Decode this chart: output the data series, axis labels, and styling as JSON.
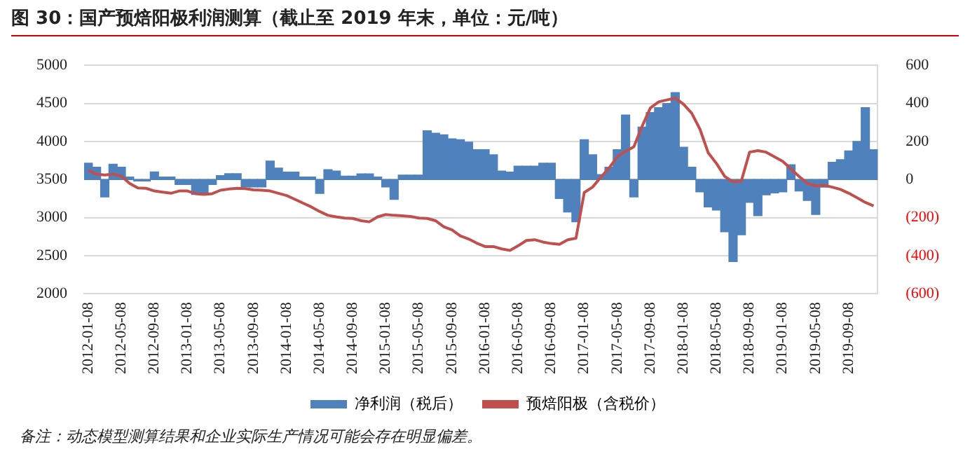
{
  "chart_data": {
    "type": "bar",
    "title": "图 30：国产预焙阳极利润测算（截止至 2019 年末，单位：元/吨）",
    "annotations": [
      "备注：动态模型测算结果和企业实际生产情况可能会存在明显偏差。"
    ],
    "categories": [
      "2012-01-08",
      null,
      null,
      null,
      "2012-05-08",
      null,
      null,
      null,
      "2012-09-08",
      null,
      null,
      null,
      "2013-01-08",
      null,
      null,
      null,
      "2013-05-08",
      null,
      null,
      null,
      "2013-09-08",
      null,
      null,
      null,
      "2014-01-08",
      null,
      null,
      null,
      "2014-05-08",
      null,
      null,
      null,
      "2014-09-08",
      null,
      null,
      null,
      "2015-01-08",
      null,
      null,
      null,
      "2015-05-08",
      null,
      null,
      null,
      "2015-09-08",
      null,
      null,
      null,
      "2016-01-08",
      null,
      null,
      null,
      "2016-05-08",
      null,
      null,
      null,
      "2016-09-08",
      null,
      null,
      null,
      "2017-01-08",
      null,
      null,
      null,
      "2017-05-08",
      null,
      null,
      null,
      "2017-09-08",
      null,
      null,
      null,
      "2018-01-08",
      null,
      null,
      null,
      "2018-05-08",
      null,
      null,
      null,
      "2018-09-08",
      null,
      null,
      null,
      "2019-01-08",
      null,
      null,
      null,
      "2019-05-08",
      null,
      null,
      null,
      "2019-09-08",
      null,
      null,
      null
    ],
    "series": [
      {
        "name": "净利润（税后）",
        "axis": "y2",
        "color": "#4f81bd",
        "values": [
          86,
          65,
          -91,
          80,
          65,
          13,
          -8,
          -8,
          40,
          13,
          13,
          -26,
          -26,
          -78,
          -78,
          -26,
          21,
          31,
          31,
          -39,
          -39,
          -39,
          97,
          60,
          39,
          39,
          13,
          13,
          -73,
          52,
          45,
          18,
          18,
          30,
          30,
          13,
          -39,
          -104,
          23,
          23,
          23,
          256,
          243,
          235,
          214,
          209,
          196,
          157,
          157,
          130,
          45,
          39,
          70,
          70,
          70,
          86,
          86,
          -100,
          -170,
          -222,
          209,
          130,
          26,
          65,
          157,
          339,
          -91,
          275,
          352,
          378,
          400,
          457,
          170,
          65,
          -65,
          -144,
          -160,
          -274,
          -431,
          -290,
          -120,
          -190,
          -80,
          -70,
          -65,
          78,
          -60,
          -110,
          -183,
          -40,
          91,
          104,
          150,
          200,
          378,
          157
        ]
      },
      {
        "name": "预焙阳极（含税价）",
        "type": "line",
        "color": "#c0504d",
        "values": [
          3620,
          3570,
          3560,
          3570,
          3545,
          3450,
          3390,
          3385,
          3350,
          3335,
          3320,
          3350,
          3350,
          3315,
          3305,
          3315,
          3360,
          3375,
          3385,
          3380,
          3365,
          3360,
          3350,
          3320,
          3290,
          3240,
          3190,
          3140,
          3080,
          3030,
          3010,
          2995,
          2990,
          2960,
          2945,
          3010,
          3040,
          3030,
          3025,
          3015,
          2995,
          2990,
          2960,
          2880,
          2840,
          2760,
          2720,
          2665,
          2620,
          2620,
          2590,
          2570,
          2630,
          2700,
          2710,
          2680,
          2660,
          2650,
          2710,
          2730,
          3330,
          3400,
          3530,
          3650,
          3800,
          3870,
          3930,
          4200,
          4440,
          4520,
          4545,
          4570,
          4490,
          4370,
          4160,
          3850,
          3710,
          3540,
          3470,
          3480,
          3860,
          3880,
          3860,
          3800,
          3740,
          3640,
          3540,
          3450,
          3415,
          3425,
          3400,
          3370,
          3320,
          3260,
          3200,
          3155
        ]
      }
    ],
    "ylim": [
      2000,
      5000
    ],
    "yticks": [
      2000,
      2500,
      3000,
      3500,
      4000,
      4500,
      5000
    ],
    "y2lim": [
      -600,
      600
    ],
    "y2ticks": [
      {
        "value": -600,
        "label": "(600)"
      },
      {
        "value": -400,
        "label": "(400)"
      },
      {
        "value": -200,
        "label": "(200)"
      },
      0,
      200,
      400,
      600
    ],
    "grid": "y",
    "legend": "bottom",
    "marker": "none"
  }
}
